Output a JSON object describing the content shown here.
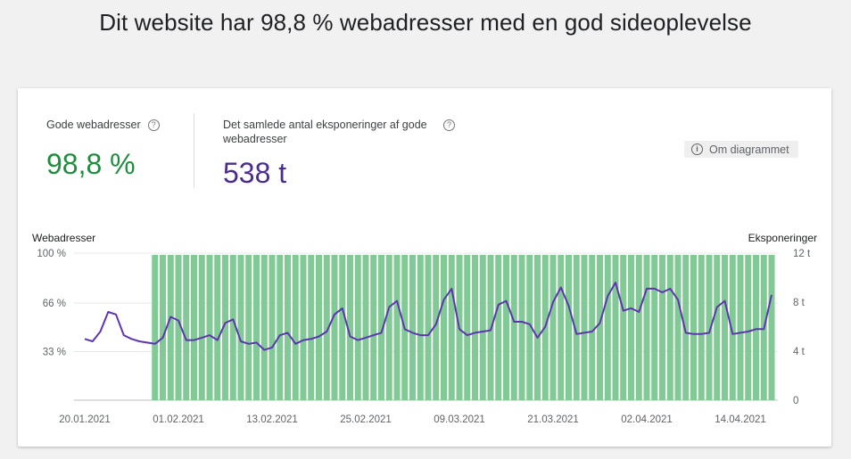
{
  "headline": "Dit website har 98,8 % webadresser med en god sideoplevelse",
  "metrics": {
    "good_urls": {
      "label": "Gode webadresser",
      "value": "98,8 %"
    },
    "impressions": {
      "label": "Det samlede antal eksponeringer af gode webadresser",
      "value": "538 t"
    }
  },
  "about_button": {
    "label": "Om diagrammet",
    "icon": "info-icon"
  },
  "colors": {
    "bars": "#81c995",
    "line": "#5e35b1",
    "good": "#1e8e3e",
    "impr": "#4a2d8f"
  },
  "chart_data": {
    "type": "bar",
    "left_axis": {
      "title": "Webadresser",
      "ticks": [
        "33 %",
        "66 %",
        "100 %"
      ],
      "tick_values": [
        33,
        66,
        100
      ],
      "ylim": [
        0,
        100
      ]
    },
    "right_axis": {
      "title": "Eksponeringer",
      "ticks": [
        "0",
        "4 t",
        "8 t",
        "12 t"
      ],
      "tick_values": [
        0,
        4,
        8,
        12
      ],
      "ylim": [
        0,
        12
      ]
    },
    "x_tick_labels": [
      "20.01.2021",
      "01.02.2021",
      "13.02.2021",
      "25.02.2021",
      "09.03.2021",
      "21.03.2021",
      "02.04.2021",
      "14.04.2021"
    ],
    "grid": true,
    "series": [
      {
        "type": "bar",
        "axis": "left",
        "start_date": "2021-01-29",
        "end_date": "2021-04-18",
        "values": [
          98.8,
          98.8,
          98.8,
          98.8,
          98.8,
          98.8,
          98.8,
          98.8,
          98.8,
          98.8,
          98.8,
          98.8,
          98.8,
          98.8,
          98.8,
          98.8,
          98.8,
          98.8,
          98.8,
          98.8,
          98.8,
          98.8,
          98.8,
          98.8,
          98.8,
          98.8,
          98.8,
          98.8,
          98.8,
          98.8,
          98.8,
          98.8,
          98.8,
          98.8,
          98.8,
          98.8,
          98.8,
          98.8,
          98.8,
          98.8,
          98.8,
          98.8,
          98.8,
          98.8,
          98.8,
          98.8,
          98.8,
          98.8,
          98.8,
          98.8,
          98.8,
          98.8,
          98.8,
          98.8,
          98.8,
          98.8,
          98.8,
          98.8,
          98.8,
          98.8,
          98.8,
          98.8,
          98.8,
          98.8,
          98.8,
          98.8,
          98.8,
          98.8,
          98.8,
          98.8,
          98.8,
          98.8,
          98.8,
          98.8,
          98.8,
          98.8,
          98.8,
          98.8,
          98.8,
          98.8
        ]
      },
      {
        "type": "line",
        "axis": "right",
        "start_date": "2021-01-20",
        "end_date": "2021-04-18",
        "values": [
          5.0,
          4.8,
          5.6,
          7.2,
          7.0,
          5.3,
          5.0,
          4.8,
          4.7,
          4.6,
          5.1,
          6.8,
          6.5,
          4.9,
          4.9,
          5.1,
          5.3,
          4.9,
          6.3,
          6.6,
          4.8,
          4.6,
          4.7,
          4.1,
          4.3,
          5.3,
          5.5,
          4.6,
          4.9,
          5.0,
          5.2,
          5.6,
          7.0,
          7.5,
          5.2,
          4.9,
          5.1,
          5.3,
          5.5,
          7.6,
          8.1,
          5.8,
          5.5,
          5.3,
          5.3,
          6.2,
          8.2,
          9.1,
          5.8,
          5.3,
          5.5,
          5.6,
          5.7,
          7.8,
          8.1,
          6.4,
          6.4,
          6.2,
          5.1,
          6.0,
          8.0,
          9.2,
          7.7,
          5.4,
          5.5,
          5.6,
          6.3,
          8.5,
          9.6,
          7.3,
          7.5,
          7.2,
          9.1,
          9.1,
          8.8,
          9.1,
          8.2,
          5.5,
          5.4,
          5.4,
          5.5,
          7.6,
          8.1,
          5.4,
          5.5,
          5.6,
          5.8,
          5.8,
          8.6
        ]
      }
    ]
  }
}
